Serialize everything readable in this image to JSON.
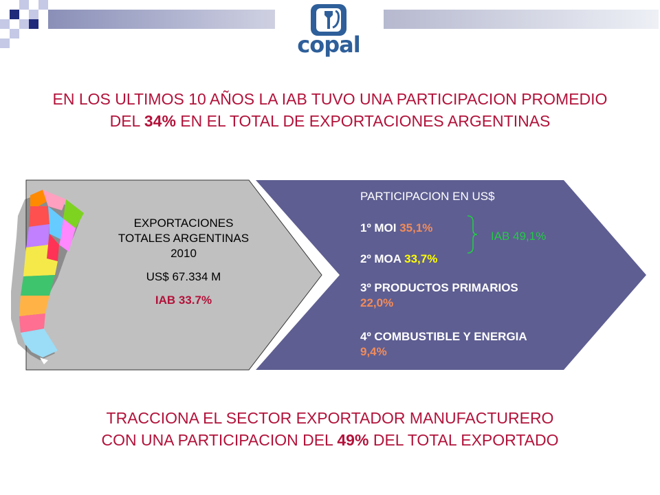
{
  "colors": {
    "headline": "#b2123a",
    "accent_navy": "#1f2a7a",
    "left_arrow": "#c0c0c0",
    "right_arrow": "#5e5e92",
    "orange_value": "#f28c5a",
    "yellow_value": "#ffff00",
    "green_value": "#22cc44"
  },
  "logo": {
    "text": "copal",
    "icon": "copal-bottle-logo-icon"
  },
  "headline_top": {
    "before": "EN LOS ULTIMOS 10 AÑOS LA IAB TUVO UNA PARTICIPACION PROMEDIO DEL ",
    "highlight": "34%",
    "after": " EN EL TOTAL DE EXPORTACIONES ARGENTINAS"
  },
  "left_box": {
    "map_icon": "argentina-provinces-map-icon",
    "title_line1": "EXPORTACIONES",
    "title_line2": "TOTALES ARGENTINAS",
    "year": "2010",
    "amount": "US$ 67.334 M",
    "iab": "IAB 33.7%"
  },
  "right_box": {
    "title": "PARTICIPACION EN US$",
    "items": [
      {
        "label": "1º MOI ",
        "value": "35,1%"
      },
      {
        "label": "2º MOA ",
        "value": "33,7%"
      },
      {
        "label": "3º PRODUCTOS PRIMARIOS",
        "value": "22,0%"
      },
      {
        "label": "4º COMBUSTIBLE Y ENERGIA",
        "value": "9,4%"
      }
    ],
    "brace_label": "IAB 49,1%"
  },
  "headline_bottom": {
    "line1": "TRACCIONA EL SECTOR EXPORTADOR MANUFACTURERO",
    "line2_before": "CON UNA PARTICIPACION DEL ",
    "highlight": "49%",
    "line2_after": " DEL TOTAL EXPORTADO"
  }
}
